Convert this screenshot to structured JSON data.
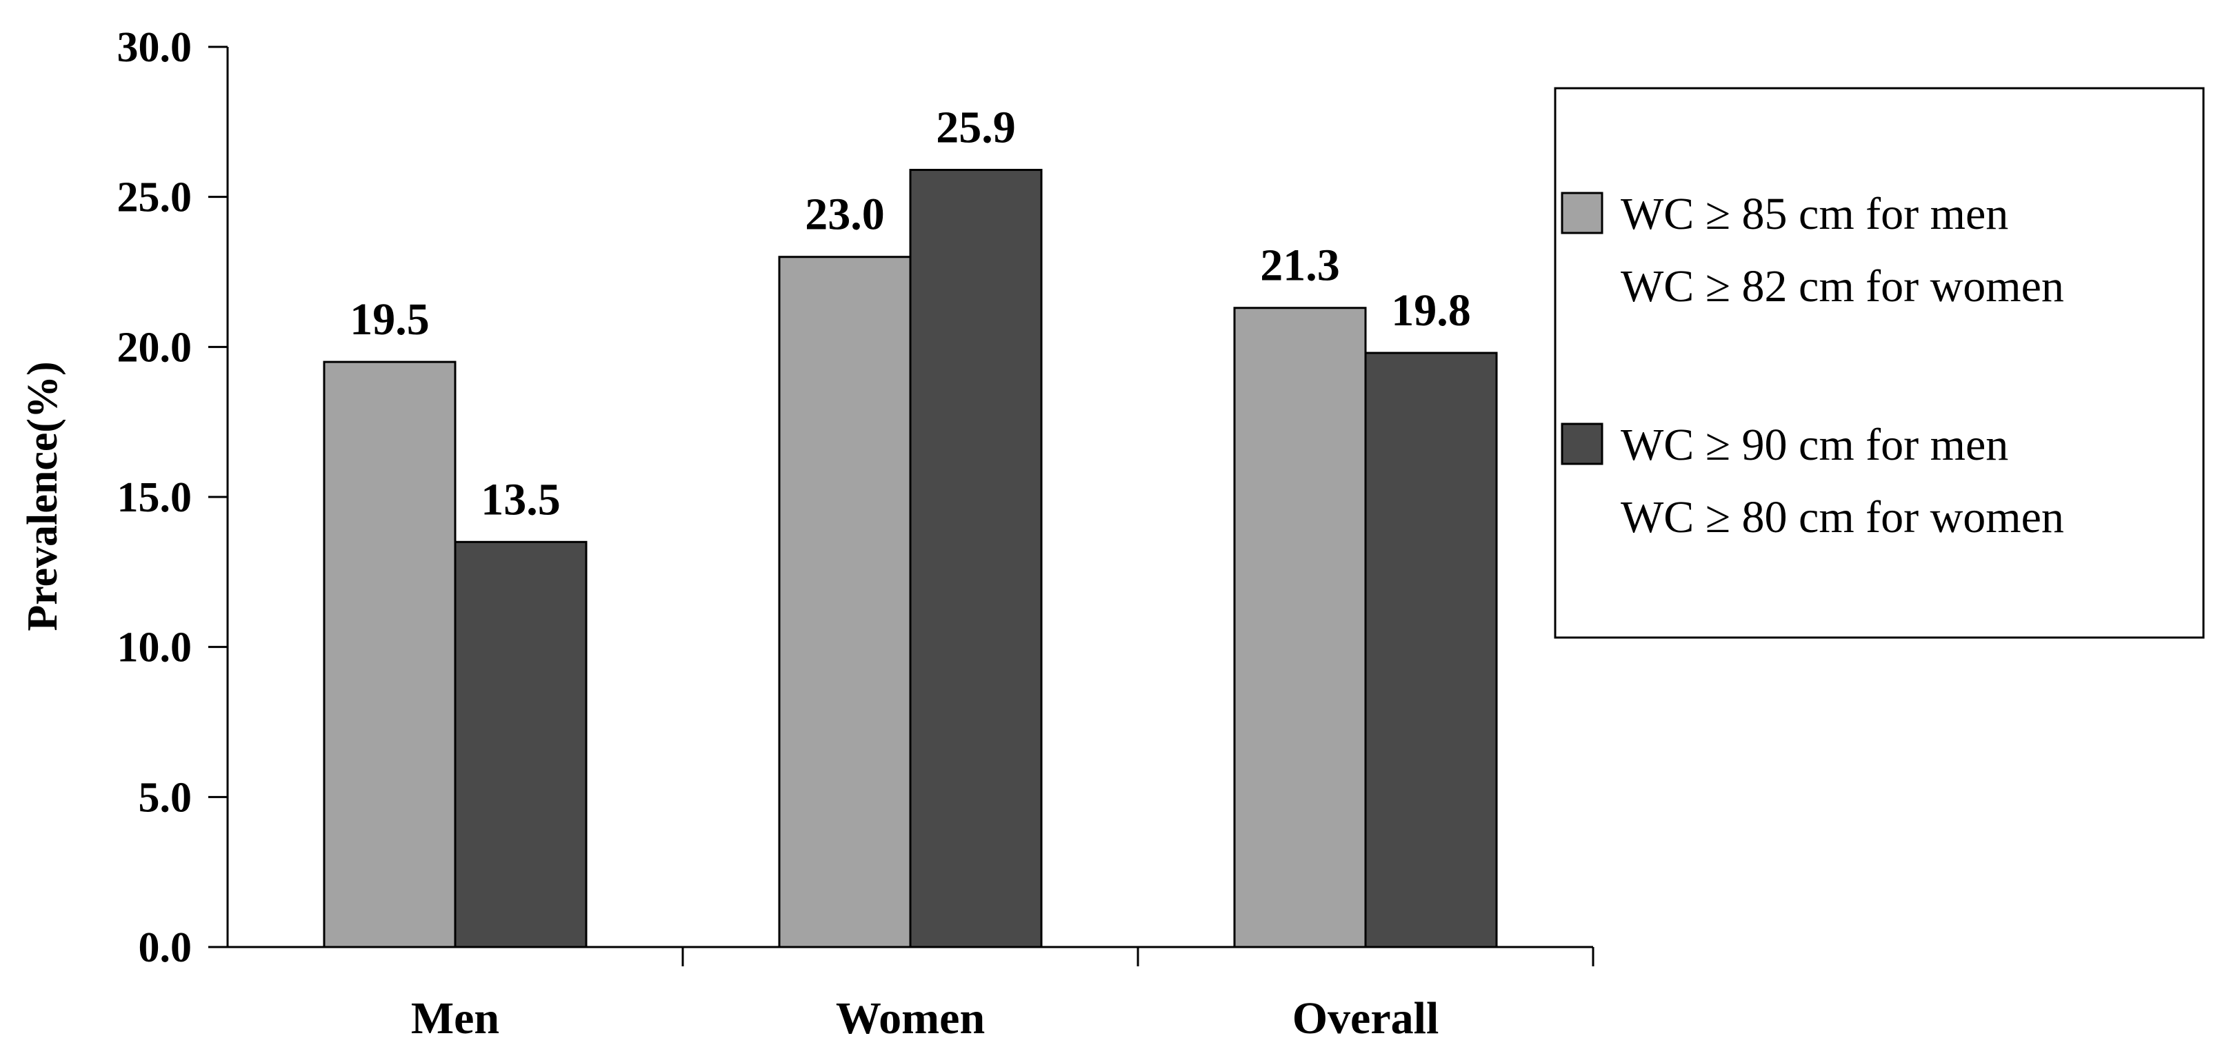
{
  "chart_data": {
    "type": "bar",
    "ylabel": "Prevalence(%)",
    "xlabel": "",
    "categories": [
      "Men",
      "Women",
      "Overall"
    ],
    "ylim": [
      0,
      30
    ],
    "yticks": [
      "0.0",
      "5.0",
      "10.0",
      "15.0",
      "20.0",
      "25.0",
      "30.0"
    ],
    "grid": false,
    "legend_position": "right",
    "series": [
      {
        "name": "WC ≥ 85 cm for men WC ≥ 82 cm for women",
        "legend_lines": [
          "WC ≥ 85 cm for men",
          "WC ≥ 82 cm for women"
        ],
        "values": [
          19.5,
          23.0,
          21.3
        ],
        "labels": [
          "19.5",
          "23.0",
          "21.3"
        ],
        "color": "#a3a3a3"
      },
      {
        "name": "WC ≥ 90 cm for men WC ≥ 80 cm for women",
        "legend_lines": [
          "WC ≥ 90 cm for men",
          "WC ≥ 80 cm for women"
        ],
        "values": [
          13.5,
          25.9,
          19.8
        ],
        "labels": [
          "13.5",
          "25.9",
          "19.8"
        ],
        "color": "#4a4a4a"
      }
    ]
  }
}
